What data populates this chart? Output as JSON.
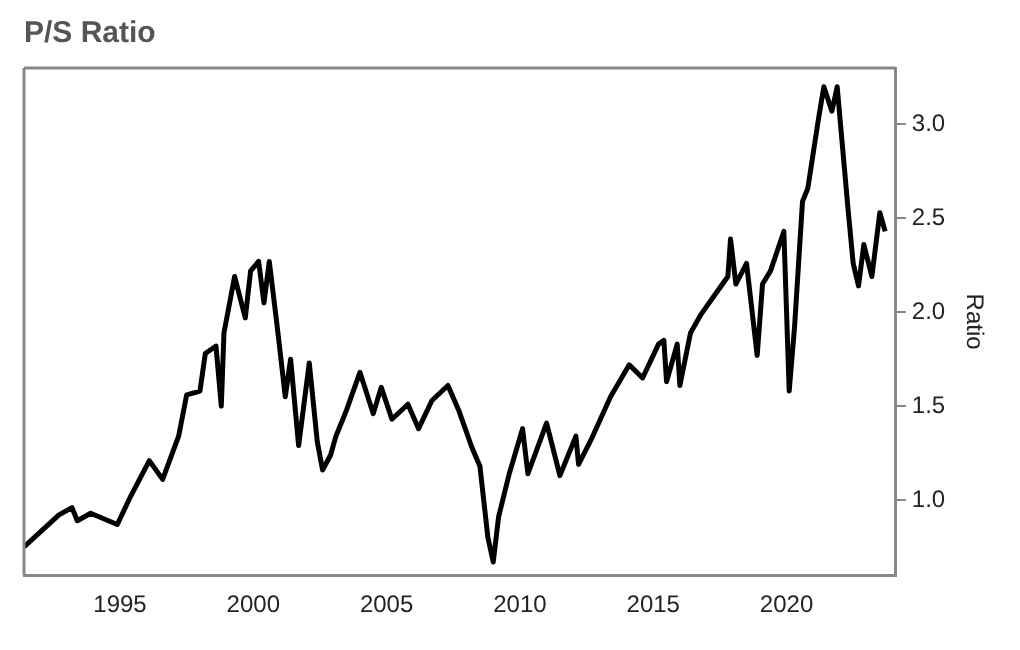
{
  "chart_data": {
    "type": "line",
    "title": "P/S Ratio",
    "ylabel": "Ratio",
    "x": [
      1991.4,
      1992.7,
      1993.2,
      1993.4,
      1993.9,
      1994.9,
      1995.4,
      1996.1,
      1996.6,
      1997.2,
      1997.5,
      1998.0,
      1998.2,
      1998.6,
      1998.8,
      1998.9,
      1999.3,
      1999.7,
      1999.9,
      2000.2,
      2000.4,
      2000.6,
      2000.9,
      2001.2,
      2001.4,
      2001.7,
      2002.1,
      2002.4,
      2002.6,
      2002.9,
      2003.1,
      2003.5,
      2004.0,
      2004.5,
      2004.8,
      2005.2,
      2005.8,
      2006.2,
      2006.7,
      2007.3,
      2007.7,
      2008.2,
      2008.5,
      2008.8,
      2009.0,
      2009.2,
      2009.6,
      2010.1,
      2010.3,
      2011.0,
      2011.5,
      2012.1,
      2012.2,
      2012.7,
      2013.4,
      2014.1,
      2014.6,
      2015.2,
      2015.4,
      2015.5,
      2015.9,
      2016.0,
      2016.4,
      2016.8,
      2017.3,
      2017.8,
      2017.9,
      2018.1,
      2018.5,
      2018.9,
      2019.1,
      2019.4,
      2019.9,
      2020.1,
      2020.3,
      2020.6,
      2020.8,
      2021.2,
      2021.4,
      2021.7,
      2021.9,
      2022.3,
      2022.5,
      2022.7,
      2022.9,
      2023.2,
      2023.5,
      2023.7
    ],
    "series": [
      {
        "color": "#000000",
        "values": [
          0.75,
          0.92,
          0.96,
          0.89,
          0.93,
          0.87,
          1.02,
          1.21,
          1.11,
          1.34,
          1.56,
          1.58,
          1.78,
          1.82,
          1.5,
          1.89,
          2.19,
          1.97,
          2.22,
          2.27,
          2.05,
          2.27,
          1.92,
          1.55,
          1.75,
          1.29,
          1.73,
          1.31,
          1.16,
          1.24,
          1.34,
          1.48,
          1.68,
          1.46,
          1.6,
          1.43,
          1.51,
          1.38,
          1.53,
          1.61,
          1.48,
          1.28,
          1.18,
          0.8,
          0.67,
          0.91,
          1.14,
          1.38,
          1.14,
          1.41,
          1.13,
          1.34,
          1.19,
          1.33,
          1.55,
          1.72,
          1.65,
          1.83,
          1.85,
          1.63,
          1.83,
          1.61,
          1.89,
          1.99,
          2.09,
          2.19,
          2.39,
          2.15,
          2.26,
          1.77,
          2.15,
          2.22,
          2.43,
          1.58,
          1.92,
          2.59,
          2.66,
          3.03,
          3.2,
          3.07,
          3.2,
          2.56,
          2.26,
          2.14,
          2.36,
          2.19,
          2.53,
          2.43
        ]
      }
    ],
    "xlim": [
      1991.4,
      2024.1
    ],
    "xticks": [
      1995,
      2000,
      2005,
      2010,
      2015,
      2020
    ],
    "ylim": [
      0.6,
      3.3
    ],
    "yticks": [
      {
        "value": 1,
        "label": "1.0"
      },
      {
        "value": 1.5,
        "label": "1.5"
      },
      {
        "value": 2,
        "label": "2.0"
      },
      {
        "value": 2.5,
        "label": "2.5"
      },
      {
        "value": 3,
        "label": "3.0"
      }
    ],
    "grid": false,
    "legend": false,
    "marker": "none",
    "line_style": "solid"
  }
}
